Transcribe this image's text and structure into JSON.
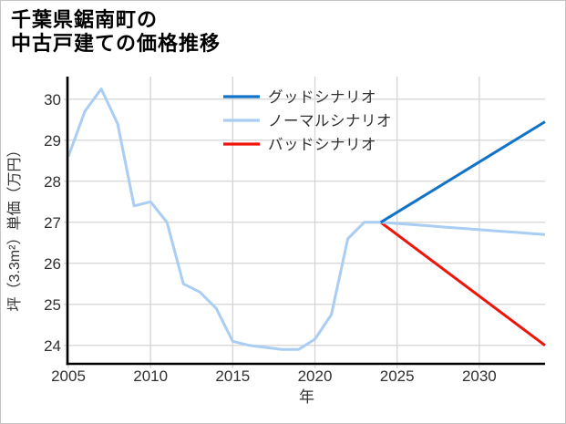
{
  "title": {
    "line1": "千葉県鋸南町の",
    "line2": "中古戸建ての価格推移"
  },
  "chart_data": {
    "type": "line",
    "title": "千葉県鋸南町の中古戸建ての価格推移",
    "xlabel": "年",
    "ylabel": "坪（3.3m²）単価（万円）",
    "xlim": [
      2005,
      2034
    ],
    "ylim": [
      23.55,
      30.55
    ],
    "x_ticks": [
      2005,
      2010,
      2015,
      2020,
      2025,
      2030
    ],
    "y_ticks": [
      24,
      25,
      26,
      27,
      28,
      29,
      30
    ],
    "grid": true,
    "legend_position": "upper center",
    "legend_frame": false,
    "colors": {
      "good": "#1173c8",
      "normal": "#a9cdf3",
      "bad": "#ed1509",
      "grid": "#d5d5d5",
      "axis": "#000000",
      "text": "#303030"
    },
    "series": [
      {
        "name": "グッドシナリオ",
        "color_key": "good",
        "width": 3,
        "x": [
          2024,
          2034
        ],
        "values": [
          27.0,
          29.45
        ]
      },
      {
        "name": "ノーマルシナリオ",
        "color_key": "normal",
        "width": 3,
        "x": [
          2005,
          2006,
          2007,
          2008,
          2009,
          2010,
          2011,
          2012,
          2013,
          2014,
          2015,
          2016,
          2017,
          2018,
          2019,
          2020,
          2021,
          2022,
          2023,
          2024,
          2025,
          2026,
          2027,
          2028,
          2029,
          2030,
          2031,
          2032,
          2033,
          2034
        ],
        "values": [
          28.6,
          29.7,
          30.25,
          29.4,
          27.4,
          27.5,
          27.0,
          25.5,
          25.3,
          24.9,
          24.1,
          24.0,
          23.95,
          23.9,
          23.9,
          24.15,
          24.75,
          26.6,
          27.0,
          27.0,
          26.97,
          26.94,
          26.91,
          26.88,
          26.85,
          26.82,
          26.79,
          26.76,
          26.73,
          26.7
        ]
      },
      {
        "name": "バッドシナリオ",
        "color_key": "bad",
        "width": 3,
        "x": [
          2024,
          2034
        ],
        "values": [
          27.0,
          24.0
        ]
      }
    ],
    "draw_order": [
      2,
      1,
      0
    ]
  }
}
